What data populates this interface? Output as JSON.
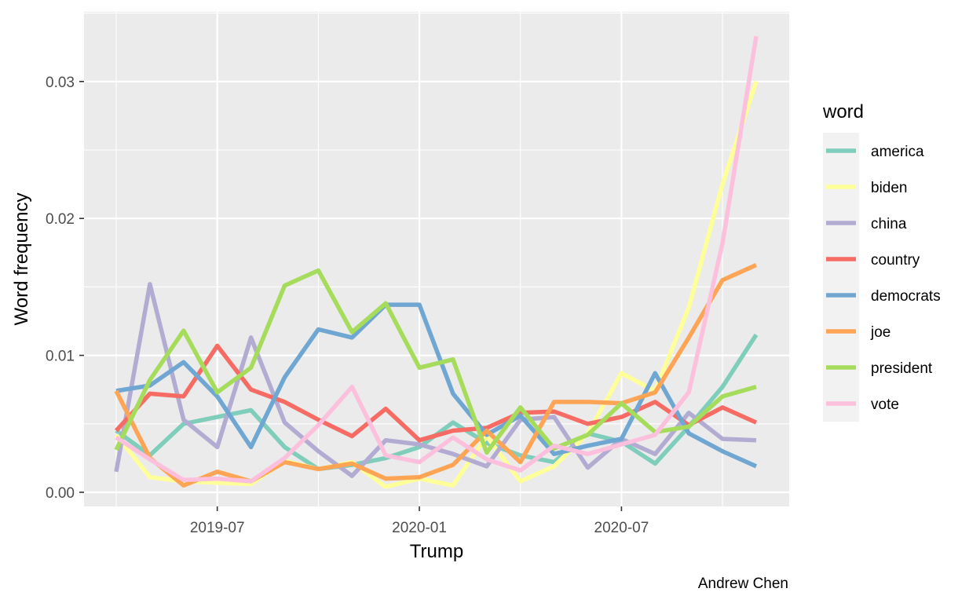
{
  "chart_data": {
    "type": "line",
    "title": "",
    "xlabel": "Trump",
    "ylabel": "Word frequency",
    "caption": "Andrew Chen",
    "legend_title": "word",
    "legend_position": "right",
    "grid": true,
    "x": [
      "2019-04",
      "2019-05",
      "2019-06",
      "2019-07",
      "2019-08",
      "2019-09",
      "2019-10",
      "2019-11",
      "2019-12",
      "2020-01",
      "2020-02",
      "2020-03",
      "2020-04",
      "2020-05",
      "2020-06",
      "2020-07",
      "2020-08",
      "2020-09",
      "2020-10",
      "2020-11"
    ],
    "x_ticks": [
      "2019-07",
      "2020-01",
      "2020-07"
    ],
    "y_ticks": [
      "0.00",
      "0.01",
      "0.02",
      "0.03"
    ],
    "ylim": [
      -0.0012,
      0.0348
    ],
    "series": [
      {
        "name": "america",
        "color": "#7FCDBB",
        "values": [
          0.0045,
          0.0027,
          0.005,
          0.0055,
          0.006,
          0.0033,
          0.0017,
          0.002,
          0.0025,
          0.0033,
          0.0051,
          0.0036,
          0.0027,
          0.0022,
          0.0043,
          0.0037,
          0.0021,
          0.0048,
          0.0077,
          0.0115
        ]
      },
      {
        "name": "biden",
        "color": "#FFFF99",
        "values": [
          0.0042,
          0.0011,
          0.0008,
          0.0007,
          0.0006,
          0.0023,
          0.0017,
          0.0022,
          0.0004,
          0.001,
          0.0005,
          0.0041,
          0.0008,
          0.0019,
          0.0043,
          0.0087,
          0.0074,
          0.0135,
          0.0225,
          0.03
        ]
      },
      {
        "name": "china",
        "color": "#B2ABD2",
        "values": [
          0.0015,
          0.0152,
          0.0053,
          0.0033,
          0.0113,
          0.0051,
          0.003,
          0.0012,
          0.0038,
          0.0035,
          0.0028,
          0.0019,
          0.0053,
          0.0055,
          0.0018,
          0.0039,
          0.0028,
          0.0058,
          0.0039,
          0.0038
        ]
      },
      {
        "name": "country",
        "color": "#F66C64",
        "values": [
          0.0045,
          0.0072,
          0.007,
          0.0107,
          0.0075,
          0.0066,
          0.0053,
          0.0041,
          0.0061,
          0.0038,
          0.0045,
          0.0047,
          0.0058,
          0.0059,
          0.005,
          0.0055,
          0.0066,
          0.0049,
          0.0062,
          0.0051
        ]
      },
      {
        "name": "democrats",
        "color": "#6FA6D2",
        "values": [
          0.0074,
          0.0078,
          0.0095,
          0.007,
          0.0033,
          0.0084,
          0.0119,
          0.0113,
          0.0137,
          0.0137,
          0.0072,
          0.0042,
          0.0056,
          0.0028,
          0.0034,
          0.0039,
          0.0087,
          0.0043,
          0.003,
          0.0019
        ]
      },
      {
        "name": "joe",
        "color": "#FEA455",
        "values": [
          0.0074,
          0.0025,
          0.0005,
          0.0015,
          0.0008,
          0.0022,
          0.0017,
          0.0021,
          0.001,
          0.0011,
          0.002,
          0.0045,
          0.0022,
          0.0066,
          0.0066,
          0.0065,
          0.0073,
          0.0113,
          0.0155,
          0.0166
        ]
      },
      {
        "name": "president",
        "color": "#A6DC5B",
        "values": [
          0.0031,
          0.0082,
          0.0118,
          0.0073,
          0.0091,
          0.0151,
          0.0162,
          0.0117,
          0.0138,
          0.0091,
          0.0097,
          0.0029,
          0.0062,
          0.0032,
          0.0042,
          0.0065,
          0.0044,
          0.0048,
          0.007,
          0.0077
        ]
      },
      {
        "name": "vote",
        "color": "#FCC0DD",
        "values": [
          0.004,
          0.0024,
          0.0009,
          0.001,
          0.0008,
          0.0025,
          0.0049,
          0.0077,
          0.0027,
          0.0022,
          0.004,
          0.0024,
          0.0016,
          0.0034,
          0.0028,
          0.0035,
          0.0042,
          0.0073,
          0.0182,
          0.0333
        ]
      }
    ]
  }
}
